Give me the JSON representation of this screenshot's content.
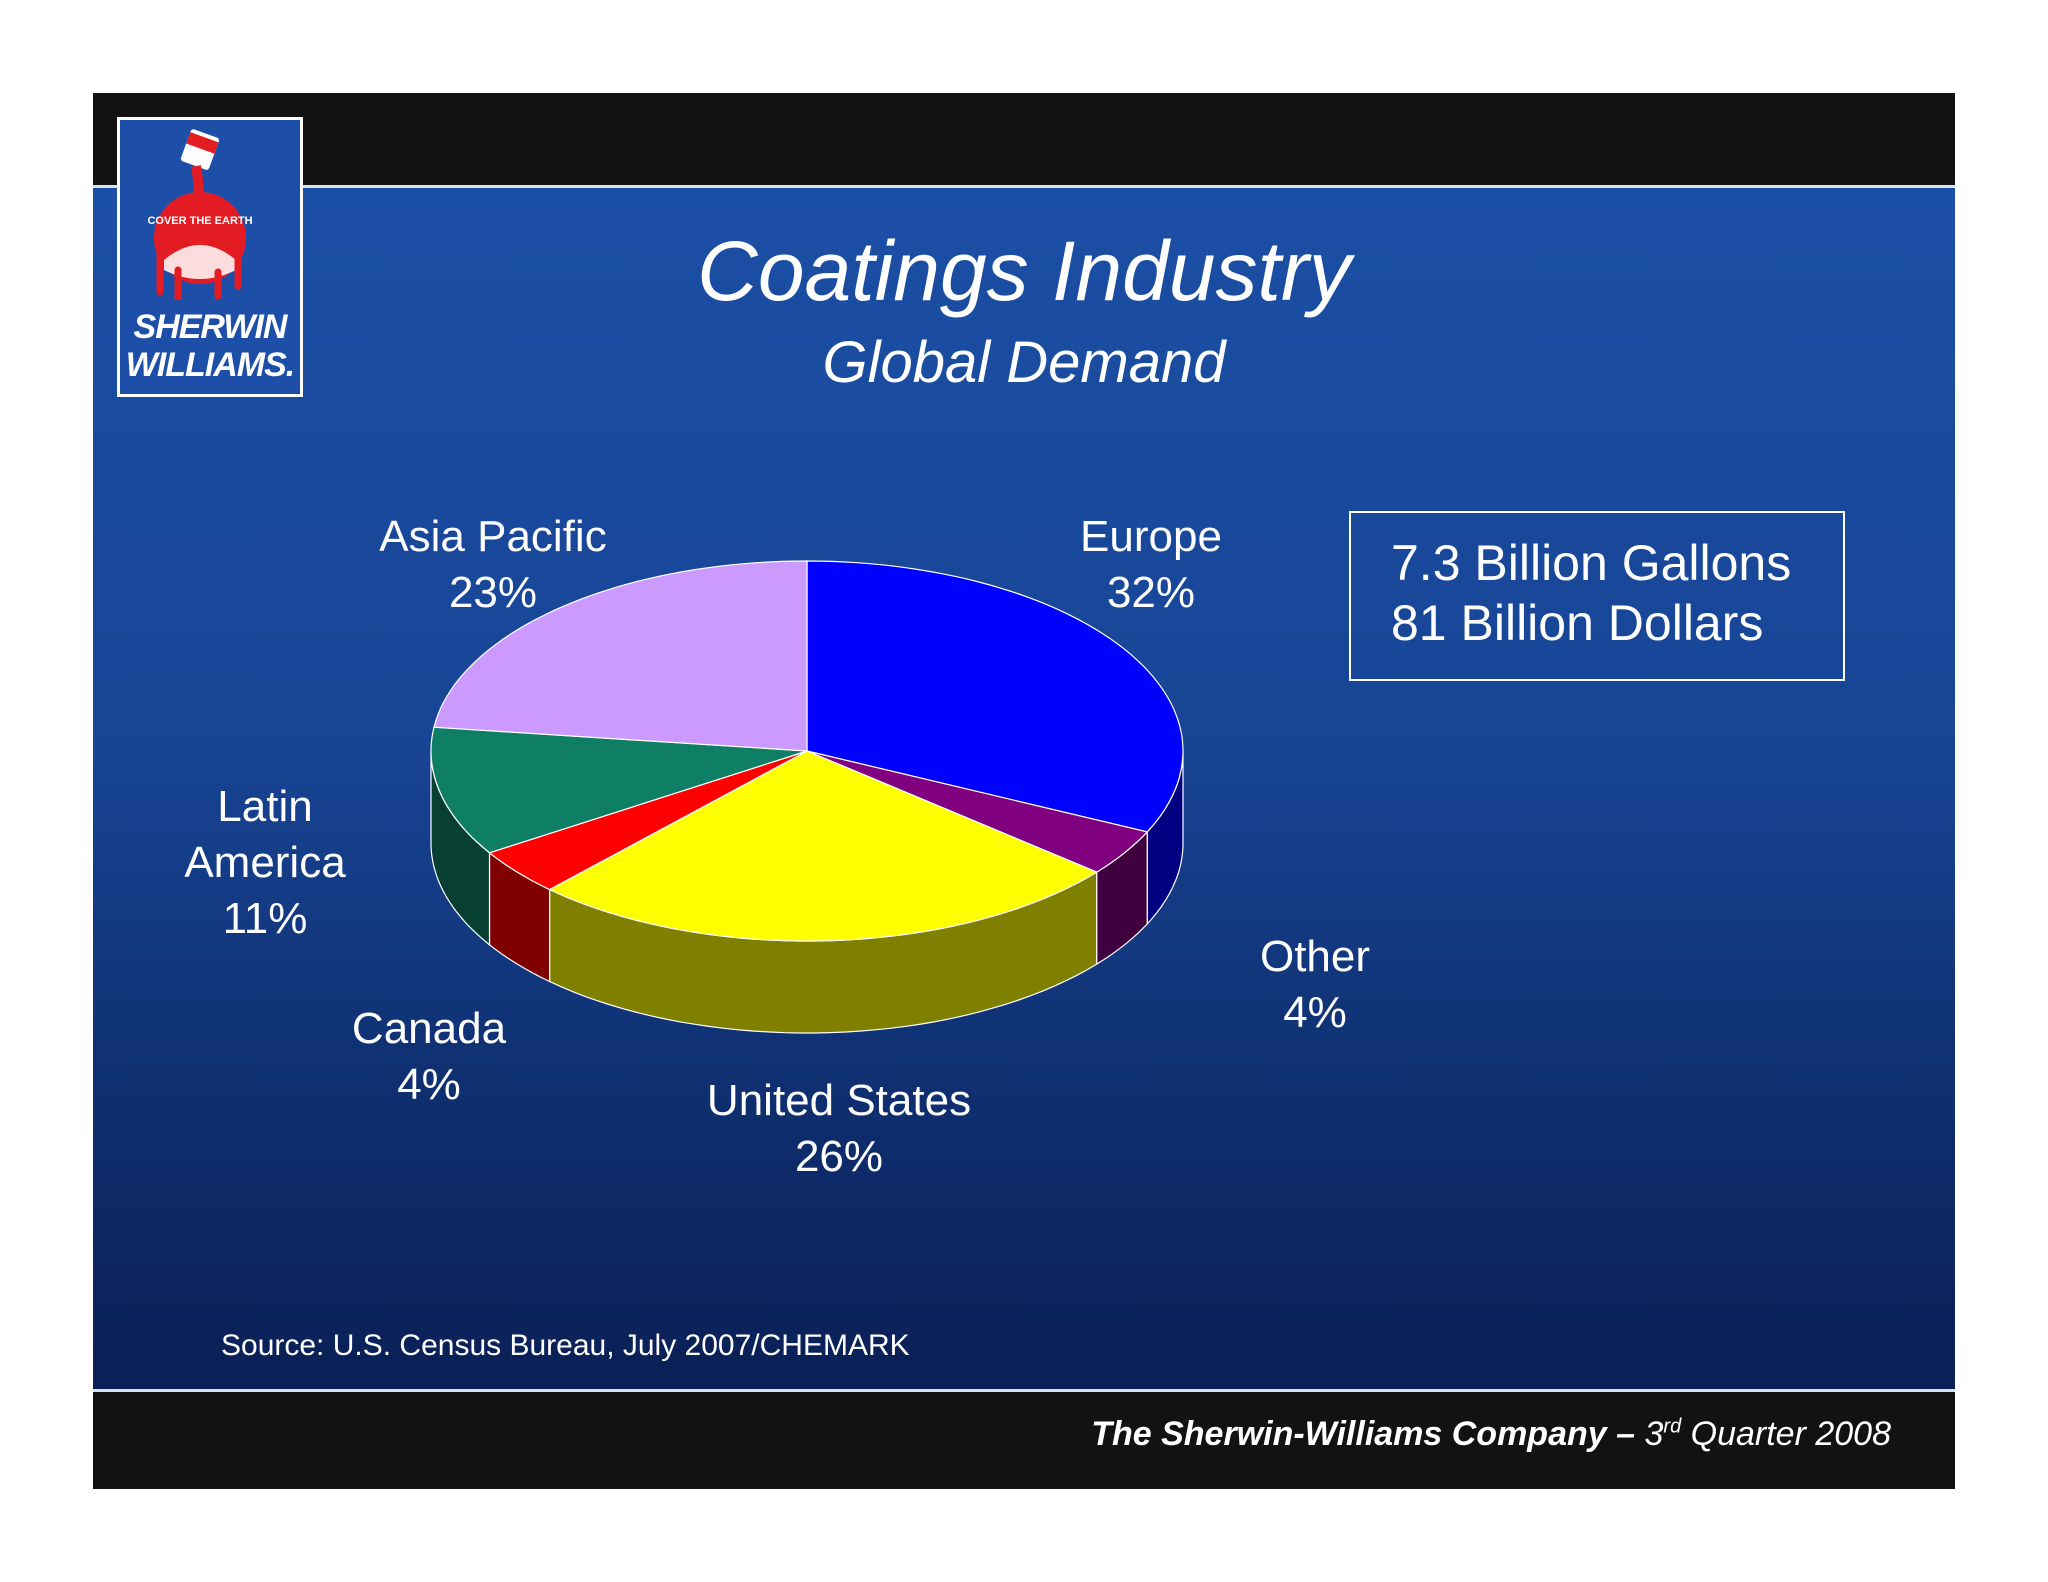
{
  "slide": {
    "title": "Coatings Industry",
    "subtitle": "Global Demand",
    "totals": {
      "line1": "7.3 Billion Gallons",
      "line2": "81 Billion Dollars"
    },
    "source": "Source:  U.S. Census Bureau, July 2007/CHEMARK",
    "footer": {
      "company": "The Sherwin-Williams Company –",
      "quarter_num": "3",
      "quarter_sup": "rd",
      "quarter_rest": " Quarter 2008"
    },
    "logo": {
      "line1": "SHERWIN",
      "line2": "WILLIAMS.",
      "tagline": "COVER THE EARTH"
    }
  },
  "colors": {
    "background": "#1b4fa5",
    "Europe": "#0000ff",
    "Other": "#800080",
    "United States": "#ffff00",
    "Canada": "#ff0000",
    "Latin America": "#0e7f64",
    "Asia Pacific": "#cc99ff"
  },
  "chart_data": {
    "type": "pie",
    "style": "3d",
    "slices": [
      {
        "name": "Europe",
        "label": "Europe",
        "value": 32,
        "value_label": "32%"
      },
      {
        "name": "Other",
        "label": "Other",
        "value": 4,
        "value_label": "4%"
      },
      {
        "name": "United States",
        "label": "United States",
        "value": 26,
        "value_label": "26%"
      },
      {
        "name": "Canada",
        "label": "Canada",
        "value": 4,
        "value_label": "4%"
      },
      {
        "name": "Latin America",
        "label": "Latin America",
        "value": 11,
        "value_label": "11%"
      },
      {
        "name": "Asia Pacific",
        "label": "Asia Pacific",
        "value": 23,
        "value_label": "23%"
      }
    ],
    "start": "12 o'clock",
    "direction": "clockwise"
  }
}
